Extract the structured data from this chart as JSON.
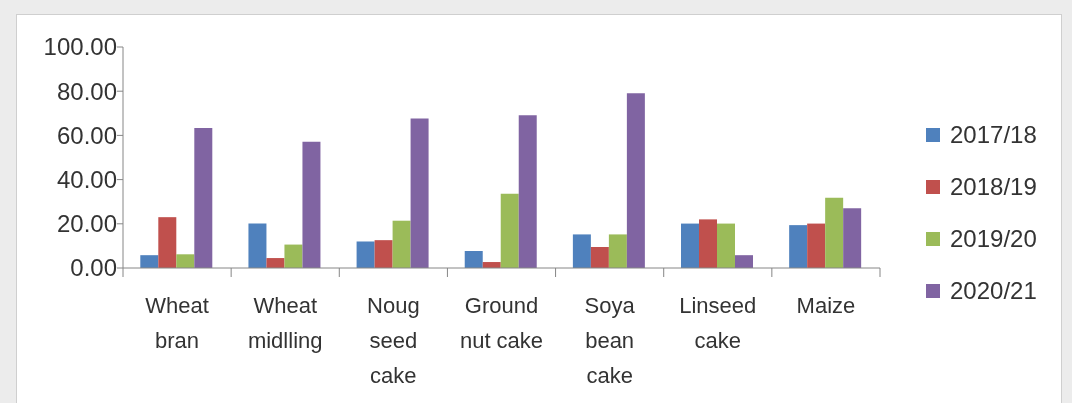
{
  "chart_data": {
    "type": "bar",
    "categories": [
      "Wheat bran",
      "Wheat midlling",
      "Noug seed cake",
      "Ground nut cake",
      "Soya bean cake",
      "Linseed cake",
      "Maize"
    ],
    "series": [
      {
        "name": "2017/18",
        "color": "#4f81bd",
        "values": [
          5.8,
          20.1,
          12.0,
          7.7,
          15.2,
          20.1,
          19.4
        ]
      },
      {
        "name": "2018/19",
        "color": "#c0504d",
        "values": [
          23.0,
          4.5,
          12.6,
          2.7,
          9.5,
          22.0,
          20.1
        ]
      },
      {
        "name": "2019/20",
        "color": "#9bbb59",
        "values": [
          6.2,
          10.6,
          21.4,
          33.6,
          15.2,
          20.1,
          31.8
        ]
      },
      {
        "name": "2020/21",
        "color": "#8064a2",
        "values": [
          63.3,
          57.1,
          67.7,
          69.1,
          79.1,
          5.8,
          27.0
        ]
      }
    ],
    "ylim": [
      0,
      100
    ],
    "yticks": [
      {
        "value": 0,
        "label": "0.00"
      },
      {
        "value": 20,
        "label": "20.00"
      },
      {
        "value": 40,
        "label": "40.00"
      },
      {
        "value": 60,
        "label": "60.00"
      },
      {
        "value": 80,
        "label": "80.00"
      },
      {
        "value": 100,
        "label": "100.00"
      }
    ],
    "legend": "right"
  }
}
